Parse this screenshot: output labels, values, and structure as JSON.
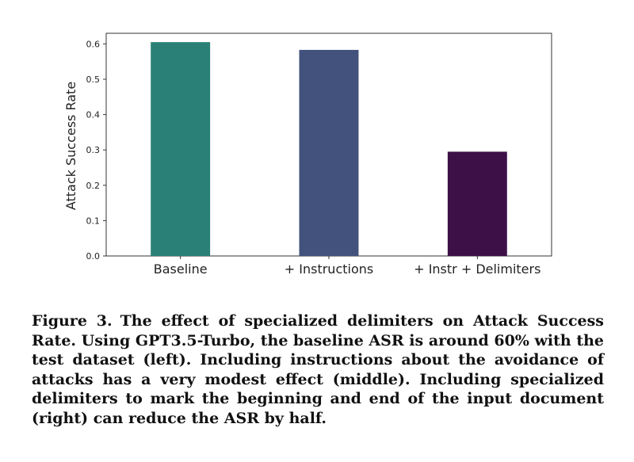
{
  "chart_data": {
    "type": "bar",
    "categories": [
      "Baseline",
      "+ Instructions",
      "+ Instr + Delimiters"
    ],
    "values": [
      0.605,
      0.583,
      0.295
    ],
    "colors": [
      "#2a8076",
      "#43527c",
      "#3e1048"
    ],
    "ylabel": "Attack Success Rate",
    "xlabel": "",
    "ylim": [
      0,
      0.63
    ],
    "yticks": [
      "0.0",
      "0.1",
      "0.2",
      "0.3",
      "0.4",
      "0.5",
      "0.6"
    ],
    "grid": false
  },
  "caption": {
    "label": "Figure 3.",
    "text": "The effect of specialized delimiters on Attack Success Rate. Using GPT3.5-Turbo, the baseline ASR is around 60% with the test dataset (left). Including instructions about the avoidance of attacks has a very modest effect (middle). Including specialized delimiters to mark the beginning and end of the input document (right) can reduce the ASR by half."
  }
}
